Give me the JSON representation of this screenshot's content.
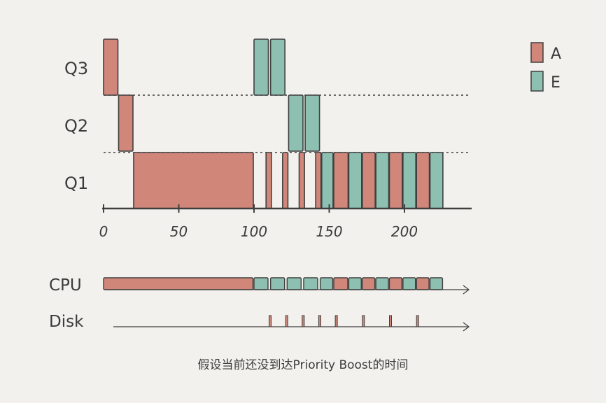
{
  "colors": {
    "A": "#d0877a",
    "E": "#8dc0b1",
    "stroke": "#3f3f3f",
    "background": "#f2f1ed"
  },
  "queues": [
    "Q3",
    "Q2",
    "Q1"
  ],
  "legend": [
    {
      "label": "A",
      "color": "#d0877a"
    },
    {
      "label": "E",
      "color": "#8dc0b1"
    }
  ],
  "chart_data": {
    "type": "gantt",
    "x_ticks": [
      "0",
      "50",
      "100",
      "150",
      "200"
    ],
    "xlim": [
      0,
      240
    ],
    "queue_blocks": [
      {
        "queue": "Q3",
        "job": "A",
        "start": 0,
        "end": 10
      },
      {
        "queue": "Q2",
        "job": "A",
        "start": 10,
        "end": 20
      },
      {
        "queue": "Q1",
        "job": "A",
        "start": 20,
        "end": 100
      },
      {
        "queue": "Q3",
        "job": "E",
        "start": 100,
        "end": 110
      },
      {
        "queue": "Q3",
        "job": "E",
        "start": 111,
        "end": 121
      },
      {
        "queue": "Q1",
        "job": "A",
        "start": 108,
        "end": 112
      },
      {
        "queue": "Q1",
        "job": "A",
        "start": 119,
        "end": 123
      },
      {
        "queue": "Q2",
        "job": "E",
        "start": 123,
        "end": 133
      },
      {
        "queue": "Q1",
        "job": "A",
        "start": 130,
        "end": 134
      },
      {
        "queue": "Q2",
        "job": "E",
        "start": 134,
        "end": 144
      },
      {
        "queue": "Q1",
        "job": "A",
        "start": 141,
        "end": 145
      },
      {
        "queue": "Q1",
        "job": "E",
        "start": 145,
        "end": 153
      },
      {
        "queue": "Q1",
        "job": "A",
        "start": 153,
        "end": 163
      },
      {
        "queue": "Q1",
        "job": "E",
        "start": 163,
        "end": 172
      },
      {
        "queue": "Q1",
        "job": "A",
        "start": 172,
        "end": 181
      },
      {
        "queue": "Q1",
        "job": "E",
        "start": 181,
        "end": 190
      },
      {
        "queue": "Q1",
        "job": "A",
        "start": 190,
        "end": 199
      },
      {
        "queue": "Q1",
        "job": "E",
        "start": 199,
        "end": 208
      },
      {
        "queue": "Q1",
        "job": "A",
        "start": 208,
        "end": 217
      },
      {
        "queue": "Q1",
        "job": "E",
        "start": 217,
        "end": 226
      }
    ],
    "cpu_blocks": [
      {
        "job": "A",
        "start": 0,
        "end": 100
      },
      {
        "job": "E",
        "start": 100,
        "end": 110
      },
      {
        "job": "E",
        "start": 111,
        "end": 121
      },
      {
        "job": "E",
        "start": 122,
        "end": 132
      },
      {
        "job": "E",
        "start": 133,
        "end": 143
      },
      {
        "job": "E",
        "start": 144,
        "end": 153
      },
      {
        "job": "A",
        "start": 153,
        "end": 163
      },
      {
        "job": "E",
        "start": 163,
        "end": 172
      },
      {
        "job": "A",
        "start": 172,
        "end": 181
      },
      {
        "job": "E",
        "start": 181,
        "end": 190
      },
      {
        "job": "A",
        "start": 190,
        "end": 199
      },
      {
        "job": "E",
        "start": 199,
        "end": 208
      },
      {
        "job": "A",
        "start": 208,
        "end": 217
      },
      {
        "job": "E",
        "start": 217,
        "end": 226
      }
    ],
    "disk_events": [
      110,
      121,
      132,
      143,
      154,
      172,
      190,
      208
    ]
  },
  "row_labels": {
    "cpu": "CPU",
    "disk": "Disk"
  },
  "caption": "假设当前还没到达Priority Boost的时间"
}
